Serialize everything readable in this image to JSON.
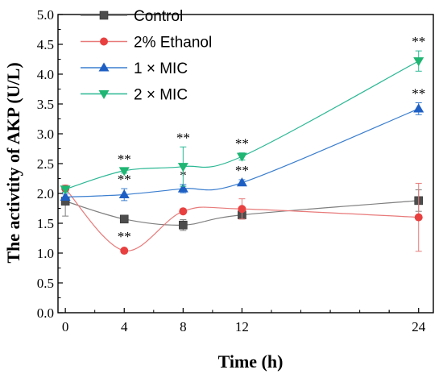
{
  "chart_data": {
    "type": "line",
    "title": "",
    "xlabel": "Time (h)",
    "ylabel": "The activtity of AKP (U/L)",
    "x": [
      0,
      4,
      8,
      12,
      24
    ],
    "x_ticks": [
      "0",
      "4",
      "8",
      "12",
      "24"
    ],
    "xlim": [
      -0.5,
      25
    ],
    "ylim": [
      0.0,
      5.0
    ],
    "y_ticks": [
      "0.0",
      "0.5",
      "1.0",
      "1.5",
      "2.0",
      "2.5",
      "3.0",
      "3.5",
      "4.0",
      "4.5",
      "5.0"
    ],
    "grid": false,
    "legend_position": "top-left",
    "series": [
      {
        "name": "Control",
        "color": "#7f7f7f",
        "marker_color": "#4d4d4d",
        "marker": "square",
        "values": [
          1.87,
          1.57,
          1.47,
          1.64,
          1.88
        ],
        "error": [
          0.25,
          0.05,
          0.09,
          0.07,
          0.18
        ],
        "significance": [
          "",
          "",
          "",
          "",
          ""
        ]
      },
      {
        "name": "2% Ethanol",
        "color": "#e87a7a",
        "marker_color": "#e84040",
        "marker": "circle",
        "values": [
          2.08,
          1.04,
          1.7,
          1.74,
          1.6
        ],
        "error": [
          0.06,
          0.0,
          0.0,
          0.17,
          0.57
        ],
        "significance": [
          "",
          "**",
          "",
          "",
          ""
        ]
      },
      {
        "name": "1 × MIC",
        "color": "#3a7ecf",
        "marker_color": "#1e5fc4",
        "marker": "triangle-up",
        "values": [
          1.94,
          1.98,
          2.08,
          2.18,
          3.42
        ],
        "error": [
          0.05,
          0.1,
          0.07,
          0.05,
          0.1
        ],
        "significance": [
          "",
          "**",
          "*",
          "**",
          "**"
        ]
      },
      {
        "name": "2 × MIC",
        "color": "#2bb894",
        "marker_color": "#1fb572",
        "marker": "triangle-down",
        "values": [
          2.07,
          2.38,
          2.45,
          2.62,
          4.22
        ],
        "error": [
          0.05,
          0.04,
          0.33,
          0.06,
          0.17
        ],
        "significance": [
          "",
          "**",
          "**",
          "**",
          "**"
        ]
      }
    ]
  }
}
